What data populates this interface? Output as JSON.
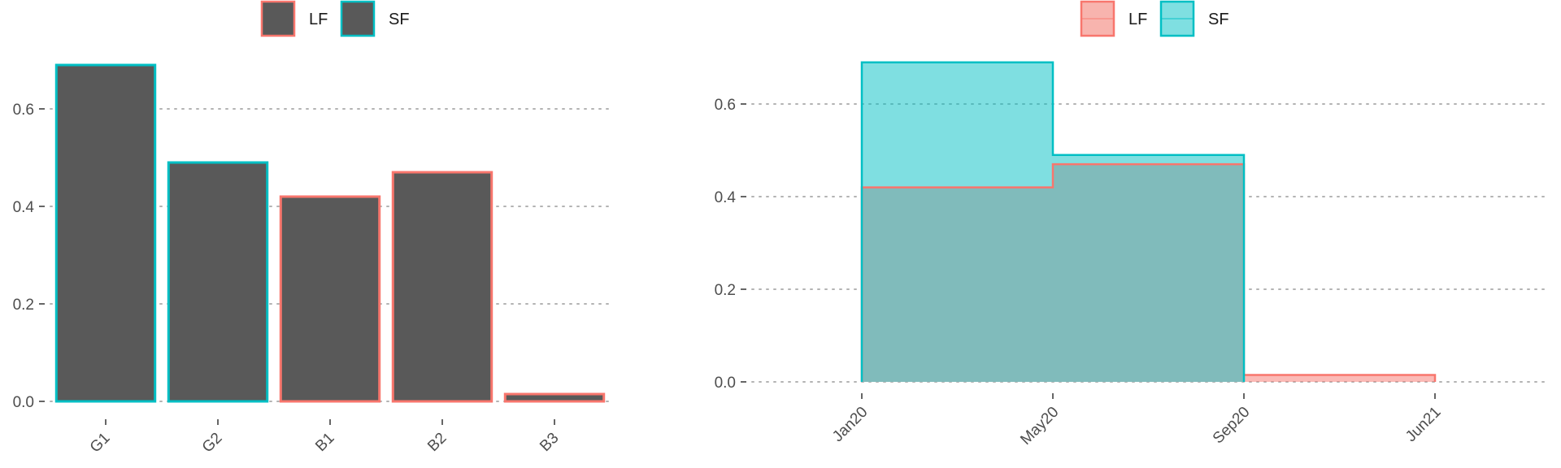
{
  "colors": {
    "lf": "#F8766D",
    "sf": "#00BFC4",
    "bar_fill": "#595959",
    "lf_area": "#F8766D",
    "sf_area": "#00BFC4",
    "overlap_area": "#80BBBB",
    "grid": "#b3b3b3",
    "axis_text": "#4d4d4d"
  },
  "chart_data": [
    {
      "type": "bar",
      "categories": [
        "G1",
        "G2",
        "B1",
        "B2",
        "B3"
      ],
      "values": [
        0.69,
        0.49,
        0.42,
        0.47,
        0.015
      ],
      "outline_series": [
        "SF",
        "SF",
        "LF",
        "LF",
        "LF"
      ],
      "legend": [
        "LF",
        "SF"
      ],
      "legend_position": "top",
      "yticks": [
        "0.0",
        "0.2",
        "0.4",
        "0.6"
      ],
      "ylim": [
        0,
        0.7
      ],
      "grid": "horizontal-dotted"
    },
    {
      "type": "area",
      "step": true,
      "xticks": [
        "Jan20",
        "May20",
        "Sep20",
        "Jun21"
      ],
      "x_breaks": [
        "2020-01",
        "2020-05",
        "2020-09",
        "2021-06"
      ],
      "series": [
        {
          "name": "LF",
          "steps": [
            {
              "from": "2020-01",
              "to": "2020-05",
              "value": 0.42
            },
            {
              "from": "2020-05",
              "to": "2020-09",
              "value": 0.47
            },
            {
              "from": "2020-09",
              "to": "2021-06",
              "value": 0.015
            }
          ]
        },
        {
          "name": "SF",
          "steps": [
            {
              "from": "2020-01",
              "to": "2020-05",
              "value": 0.69
            },
            {
              "from": "2020-05",
              "to": "2020-09",
              "value": 0.49
            }
          ]
        }
      ],
      "legend": [
        "LF",
        "SF"
      ],
      "legend_position": "top",
      "yticks": [
        "0.0",
        "0.2",
        "0.4",
        "0.6"
      ],
      "ylim": [
        0,
        0.7
      ],
      "grid": "horizontal-dotted"
    }
  ]
}
